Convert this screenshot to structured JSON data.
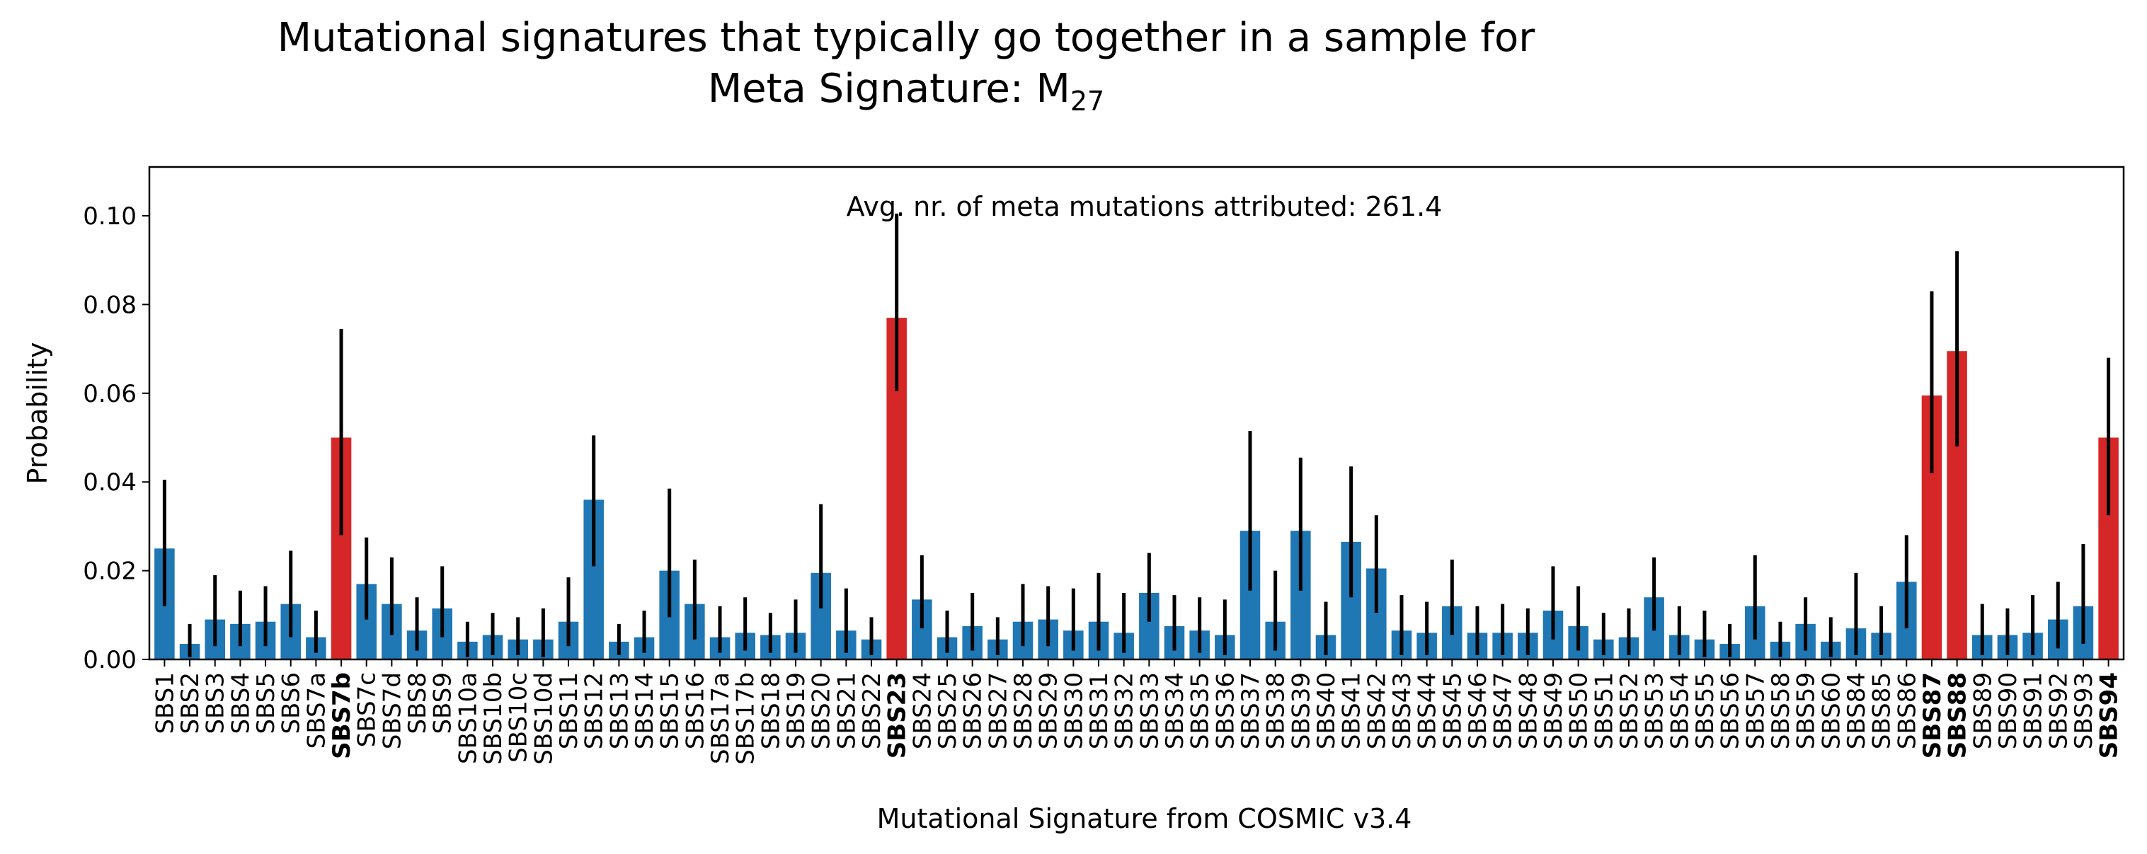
{
  "chart_data": {
    "type": "bar",
    "title_line1": "Mutational signatures that typically go together in a sample for",
    "title_line2_prefix": "Meta Signature: M",
    "title_line2_subscript": "27",
    "xlabel": "Mutational Signature from COSMIC v3.4",
    "ylabel": "Probability",
    "annotation": "Avg. nr. of meta mutations attributed: 261.4",
    "ylim": [
      0,
      0.111
    ],
    "yticks": [
      "0.00",
      "0.02",
      "0.04",
      "0.06",
      "0.08",
      "0.10"
    ],
    "ytick_values": [
      0,
      0.02,
      0.04,
      0.06,
      0.08,
      0.1
    ],
    "grid": false,
    "colors": {
      "normal": "#1f77b4",
      "highlight": "#d62728",
      "error": "#000000"
    },
    "categories": [
      "SBS1",
      "SBS2",
      "SBS3",
      "SBS4",
      "SBS5",
      "SBS6",
      "SBS7a",
      "SBS7b",
      "SBS7c",
      "SBS7d",
      "SBS8",
      "SBS9",
      "SBS10a",
      "SBS10b",
      "SBS10c",
      "SBS10d",
      "SBS11",
      "SBS12",
      "SBS13",
      "SBS14",
      "SBS15",
      "SBS16",
      "SBS17a",
      "SBS17b",
      "SBS18",
      "SBS19",
      "SBS20",
      "SBS21",
      "SBS22",
      "SBS23",
      "SBS24",
      "SBS25",
      "SBS26",
      "SBS27",
      "SBS28",
      "SBS29",
      "SBS30",
      "SBS31",
      "SBS32",
      "SBS33",
      "SBS34",
      "SBS35",
      "SBS36",
      "SBS37",
      "SBS38",
      "SBS39",
      "SBS40",
      "SBS41",
      "SBS42",
      "SBS43",
      "SBS44",
      "SBS45",
      "SBS46",
      "SBS47",
      "SBS48",
      "SBS49",
      "SBS50",
      "SBS51",
      "SBS52",
      "SBS53",
      "SBS54",
      "SBS55",
      "SBS56",
      "SBS57",
      "SBS58",
      "SBS59",
      "SBS60",
      "SBS84",
      "SBS85",
      "SBS86",
      "SBS87",
      "SBS88",
      "SBS89",
      "SBS90",
      "SBS91",
      "SBS92",
      "SBS93",
      "SBS94"
    ],
    "values": [
      0.025,
      0.0035,
      0.009,
      0.008,
      0.0085,
      0.0125,
      0.005,
      0.05,
      0.017,
      0.0125,
      0.0065,
      0.0115,
      0.004,
      0.0055,
      0.0045,
      0.0045,
      0.0085,
      0.036,
      0.004,
      0.005,
      0.02,
      0.0125,
      0.005,
      0.006,
      0.0055,
      0.006,
      0.0195,
      0.0065,
      0.0045,
      0.077,
      0.0135,
      0.005,
      0.0075,
      0.0045,
      0.0085,
      0.009,
      0.0065,
      0.0085,
      0.006,
      0.015,
      0.0075,
      0.0065,
      0.0055,
      0.029,
      0.0085,
      0.029,
      0.0055,
      0.0265,
      0.0205,
      0.0065,
      0.006,
      0.012,
      0.006,
      0.006,
      0.006,
      0.011,
      0.0075,
      0.0045,
      0.005,
      0.014,
      0.0055,
      0.0045,
      0.0035,
      0.012,
      0.004,
      0.008,
      0.004,
      0.007,
      0.006,
      0.0175,
      0.0595,
      0.0695,
      0.0055,
      0.0055,
      0.006,
      0.009,
      0.012,
      0.05
    ],
    "error_low": [
      0.012,
      0.0005,
      0.003,
      0.003,
      0.003,
      0.005,
      0.0015,
      0.028,
      0.009,
      0.0055,
      0.002,
      0.005,
      0.0005,
      0.001,
      0.001,
      0.0005,
      0.003,
      0.021,
      0.001,
      0.0015,
      0.0095,
      0.0045,
      0.0015,
      0.002,
      0.0015,
      0.0015,
      0.0115,
      0.0015,
      0.001,
      0.0605,
      0.007,
      0.0015,
      0.002,
      0.001,
      0.003,
      0.003,
      0.002,
      0.002,
      0.0015,
      0.0085,
      0.002,
      0.0015,
      0.001,
      0.0155,
      0.002,
      0.0155,
      0.001,
      0.014,
      0.0105,
      0.001,
      0.001,
      0.0055,
      0.001,
      0.001,
      0.001,
      0.0045,
      0.002,
      0.001,
      0.001,
      0.0065,
      0.001,
      0.0005,
      0.0005,
      0.0045,
      0.0005,
      0.002,
      0.0005,
      0.001,
      0.001,
      0.007,
      0.042,
      0.048,
      0.001,
      0.001,
      0.001,
      0.0025,
      0.0035,
      0.0325
    ],
    "error_high": [
      0.0405,
      0.008,
      0.019,
      0.0155,
      0.0165,
      0.0245,
      0.011,
      0.0745,
      0.0275,
      0.023,
      0.014,
      0.021,
      0.0085,
      0.0105,
      0.0095,
      0.0115,
      0.0185,
      0.0505,
      0.008,
      0.011,
      0.0385,
      0.0225,
      0.012,
      0.014,
      0.0105,
      0.0135,
      0.035,
      0.016,
      0.0095,
      0.1005,
      0.0235,
      0.011,
      0.015,
      0.0095,
      0.017,
      0.0165,
      0.016,
      0.0195,
      0.015,
      0.024,
      0.0145,
      0.014,
      0.0135,
      0.0515,
      0.02,
      0.0455,
      0.013,
      0.0435,
      0.0325,
      0.0145,
      0.013,
      0.0225,
      0.012,
      0.0125,
      0.0115,
      0.021,
      0.0165,
      0.0105,
      0.0115,
      0.023,
      0.012,
      0.011,
      0.008,
      0.0235,
      0.0085,
      0.014,
      0.0095,
      0.0195,
      0.012,
      0.028,
      0.083,
      0.092,
      0.0125,
      0.0115,
      0.0145,
      0.0175,
      0.026,
      0.068
    ],
    "highlighted": [
      "SBS7b",
      "SBS23",
      "SBS87",
      "SBS88",
      "SBS94"
    ]
  }
}
